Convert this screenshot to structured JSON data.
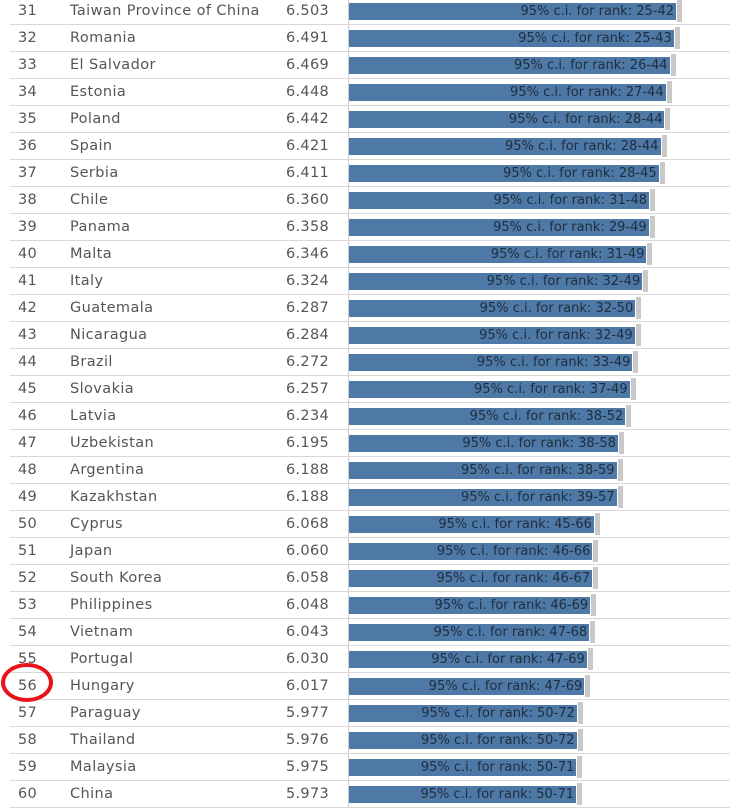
{
  "chart_data": {
    "type": "bar",
    "ci_prefix": "95% c.i. for rank:",
    "rows": [
      {
        "rank": "31",
        "country": "Taiwan Province of China",
        "score": 6.503,
        "ci": "25-42"
      },
      {
        "rank": "32",
        "country": "Romania",
        "score": 6.491,
        "ci": "25-43"
      },
      {
        "rank": "33",
        "country": "El Salvador",
        "score": 6.469,
        "ci": "26-44"
      },
      {
        "rank": "34",
        "country": "Estonia",
        "score": 6.448,
        "ci": "27-44"
      },
      {
        "rank": "35",
        "country": "Poland",
        "score": 6.442,
        "ci": "28-44"
      },
      {
        "rank": "36",
        "country": "Spain",
        "score": 6.421,
        "ci": "28-44"
      },
      {
        "rank": "37",
        "country": "Serbia",
        "score": 6.411,
        "ci": "28-45"
      },
      {
        "rank": "38",
        "country": "Chile",
        "score": 6.36,
        "ci": "31-48"
      },
      {
        "rank": "39",
        "country": "Panama",
        "score": 6.358,
        "ci": "29-49"
      },
      {
        "rank": "40",
        "country": "Malta",
        "score": 6.346,
        "ci": "31-49"
      },
      {
        "rank": "41",
        "country": "Italy",
        "score": 6.324,
        "ci": "32-49"
      },
      {
        "rank": "42",
        "country": "Guatemala",
        "score": 6.287,
        "ci": "32-50"
      },
      {
        "rank": "43",
        "country": "Nicaragua",
        "score": 6.284,
        "ci": "32-49"
      },
      {
        "rank": "44",
        "country": "Brazil",
        "score": 6.272,
        "ci": "33-49"
      },
      {
        "rank": "45",
        "country": "Slovakia",
        "score": 6.257,
        "ci": "37-49"
      },
      {
        "rank": "46",
        "country": "Latvia",
        "score": 6.234,
        "ci": "38-52"
      },
      {
        "rank": "47",
        "country": "Uzbekistan",
        "score": 6.195,
        "ci": "38-58"
      },
      {
        "rank": "48",
        "country": "Argentina",
        "score": 6.188,
        "ci": "38-59"
      },
      {
        "rank": "49",
        "country": "Kazakhstan",
        "score": 6.188,
        "ci": "39-57"
      },
      {
        "rank": "50",
        "country": "Cyprus",
        "score": 6.068,
        "ci": "45-66"
      },
      {
        "rank": "51",
        "country": "Japan",
        "score": 6.06,
        "ci": "46-66"
      },
      {
        "rank": "52",
        "country": "South Korea",
        "score": 6.058,
        "ci": "46-67"
      },
      {
        "rank": "53",
        "country": "Philippines",
        "score": 6.048,
        "ci": "46-69"
      },
      {
        "rank": "54",
        "country": "Vietnam",
        "score": 6.043,
        "ci": "47-68"
      },
      {
        "rank": "55",
        "country": "Portugal",
        "score": 6.03,
        "ci": "47-69"
      },
      {
        "rank": "56",
        "country": "Hungary",
        "score": 6.017,
        "ci": "47-69",
        "highlighted": true
      },
      {
        "rank": "57",
        "country": "Paraguay",
        "score": 5.977,
        "ci": "50-72"
      },
      {
        "rank": "58",
        "country": "Thailand",
        "score": 5.976,
        "ci": "50-72"
      },
      {
        "rank": "59",
        "country": "Malaysia",
        "score": 5.975,
        "ci": "50-71"
      },
      {
        "rank": "60",
        "country": "China",
        "score": 5.973,
        "ci": "50-71"
      }
    ],
    "colors": {
      "bar": "#4e79a7",
      "highlight": "#e8141a"
    }
  }
}
